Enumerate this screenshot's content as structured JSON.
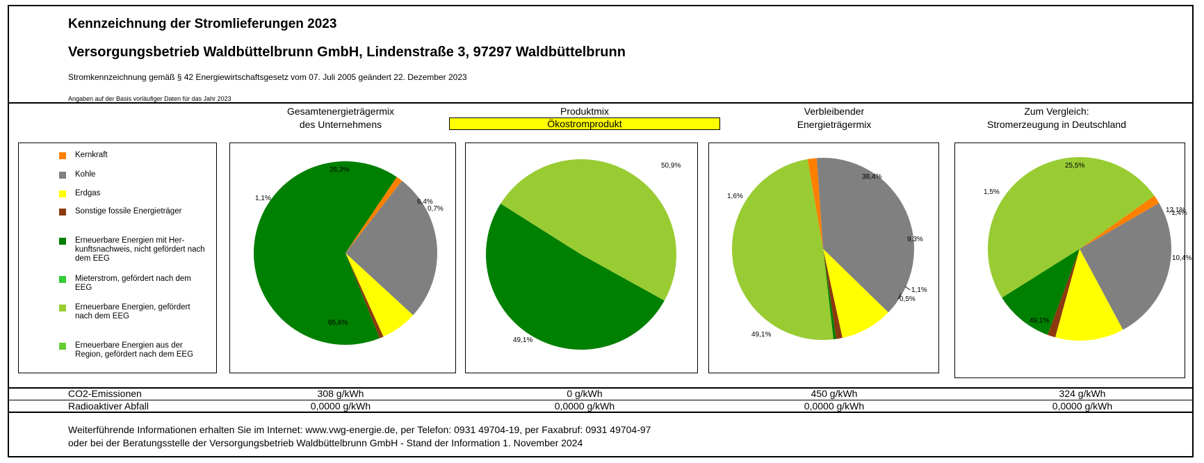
{
  "header": {
    "title": "Kennzeichnung der Stromlieferungen 2023",
    "company": "Versorgungsbetrieb Waldbüttelbrunn GmbH, Lindenstraße 3, 97297 Waldbüttelbrunn",
    "law": "Stromkennzeichnung gemäß § 42 Energiewirtschaftsgesetz vom 07. Juli 2005 geändert 22. Dezember 2023",
    "note": "Angaben auf der Basis vorläufiger Daten für das Jahr 2023"
  },
  "columns": {
    "c1": {
      "line1": "Gesamtenergieträgermix",
      "line2": "des Unternehmens"
    },
    "c2": {
      "line1": "Produktmix",
      "line2": "Ökostromprodukt"
    },
    "c3": {
      "line1": "Verbleibender",
      "line2": "Energieträgermix"
    },
    "c4": {
      "line1": "Zum Vergleich:",
      "line2": "Stromerzeugung in Deutschland"
    }
  },
  "legend": [
    {
      "label": "Kernkraft",
      "color": "#ff8000"
    },
    {
      "label": "Kohle",
      "color": "#808080"
    },
    {
      "label": "Erdgas",
      "color": "#ffff00"
    },
    {
      "label": "Sonstige fossile Energieträger",
      "color": "#8b3a0f"
    },
    {
      "label": "Erneuerbare Energien mit Her-kunftsnachweis, nicht gefördert nach dem EEG",
      "color": "#008000"
    },
    {
      "label": "Mieterstrom, gefördert nach dem EEG",
      "color": "#33cc33"
    },
    {
      "label": "Erneuerbare Energien, gefördert nach dem EEG",
      "color": "#99cc33"
    },
    {
      "label": "Erneuerbare Energien aus der Region, gefördert nach dem EEG",
      "color": "#66cc33"
    }
  ],
  "chart_data": [
    {
      "type": "pie",
      "title": "Gesamtenergieträgermix des Unternehmens",
      "slices": [
        {
          "name": "Kohle",
          "value": 26.3,
          "label": "26,3%",
          "color": "#808080"
        },
        {
          "name": "Erdgas",
          "value": 6.4,
          "label": "6,4%",
          "color": "#ffff00"
        },
        {
          "name": "Sonstige fossile Energieträger",
          "value": 0.7,
          "label": "0,7%",
          "color": "#8b3a0f"
        },
        {
          "name": "Erneuerbare Energien mit Her-kunftsnachweis, nicht gefördert nach dem EEG",
          "value": 65.6,
          "label": "65,6%",
          "color": "#008000"
        },
        {
          "name": "Kernkraft",
          "value": 1.1,
          "label": "1,1%",
          "color": "#ff8000"
        }
      ]
    },
    {
      "type": "pie",
      "title": "Produktmix Ökostromprodukt",
      "slices": [
        {
          "name": "Erneuerbare Energien mit Her-kunftsnachweis, nicht gefördert nach dem EEG",
          "value": 50.9,
          "label": "50,9%",
          "color": "#008000"
        },
        {
          "name": "Erneuerbare Energien, gefördert nach dem EEG",
          "value": 49.1,
          "label": "49,1%",
          "color": "#99cc33"
        }
      ]
    },
    {
      "type": "pie",
      "title": "Verbleibender Energieträgermix",
      "slices": [
        {
          "name": "Kohle",
          "value": 38.4,
          "label": "38,4%",
          "color": "#808080"
        },
        {
          "name": "Erdgas",
          "value": 9.3,
          "label": "9,3%",
          "color": "#ffff00"
        },
        {
          "name": "Sonstige fossile Energieträger",
          "value": 1.1,
          "label": "1,1%",
          "color": "#8b3a0f"
        },
        {
          "name": "Erneuerbare Energien mit Her-kunftsnachweis, nicht gefördert nach dem EEG",
          "value": 0.5,
          "label": "0,5%",
          "color": "#008000"
        },
        {
          "name": "Erneuerbare Energien, gefördert nach dem EEG",
          "value": 49.1,
          "label": "49,1%",
          "color": "#99cc33"
        },
        {
          "name": "Kernkraft",
          "value": 1.6,
          "label": "1,6%",
          "color": "#ff8000"
        }
      ]
    },
    {
      "type": "pie",
      "title": "Zum Vergleich: Stromerzeugung in Deutschland",
      "slices": [
        {
          "name": "Kohle",
          "value": 25.5,
          "label": "25,5%",
          "color": "#808080"
        },
        {
          "name": "Erdgas",
          "value": 12.1,
          "label": "12,1%",
          "color": "#ffff00"
        },
        {
          "name": "Sonstige fossile Energieträger",
          "value": 1.4,
          "label": "1,4%",
          "color": "#8b3a0f"
        },
        {
          "name": "Erneuerbare Energien mit Her-kunftsnachweis, nicht gefördert nach dem EEG",
          "value": 10.4,
          "label": "10,4%",
          "color": "#008000"
        },
        {
          "name": "Erneuerbare Energien, gefördert nach dem EEG",
          "value": 49.1,
          "label": "49,1%",
          "color": "#99cc33"
        },
        {
          "name": "Kernkraft",
          "value": 1.5,
          "label": "1,5%",
          "color": "#ff8000"
        }
      ]
    }
  ],
  "emissions": {
    "co2_label": "CO2-Emissionen",
    "waste_label": "Radioaktiver Abfall",
    "co2": [
      "308 g/kWh",
      "0 g/kWh",
      "450 g/kWh",
      "324 g/kWh"
    ],
    "waste": [
      "0,0000 g/kWh",
      "0,0000 g/kWh",
      "0,0000 g/kWh",
      "0,0000 g/kWh"
    ]
  },
  "footer": {
    "line1": "Weiterführende Informationen erhalten Sie im Internet: www.vwg-energie.de, per Telefon: 0931 49704-19, per Faxabruf: 0931 49704-97",
    "line2": "oder bei der Beratungsstelle der Versorgungsbetrieb Waldbüttelbrunn GmbH - Stand der Information 1. November 2024"
  }
}
